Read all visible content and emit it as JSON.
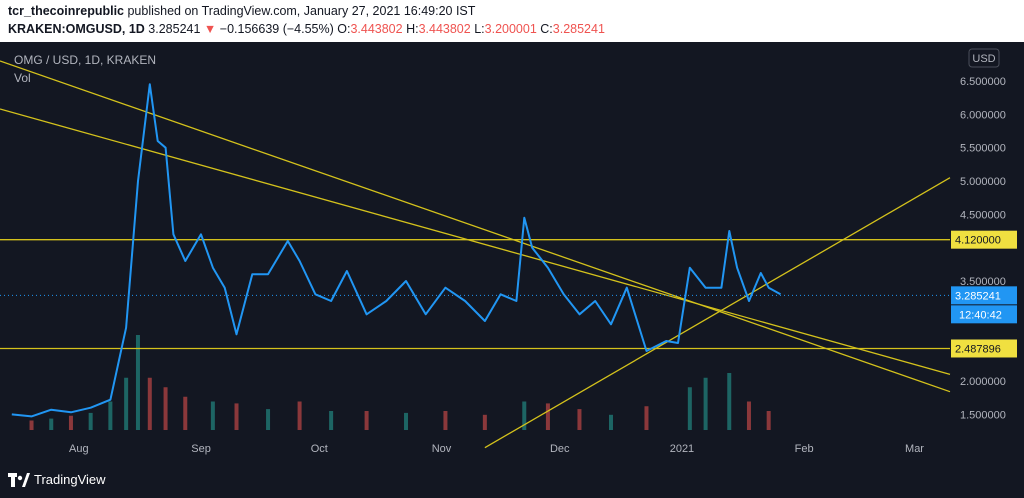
{
  "header": {
    "publisher": "tcr_thecoinrepublic",
    "published_text": "published on TradingView.com, January 27, 2021 16:49:20 IST",
    "symbol": "KRAKEN:OMGUSD, 1D",
    "last": "3.285241",
    "change_arrow": "▼",
    "change": "−0.156639 (−4.55%)",
    "o_label": "O:",
    "o_value": "3.443802",
    "h_label": "H:",
    "h_value": "3.443802",
    "l_label": "L:",
    "l_value": "3.200001",
    "c_label": "C:",
    "c_value": "3.285241"
  },
  "legend": {
    "title": "OMG / USD, 1D, KRAKEN",
    "volume": "Vol"
  },
  "footer": {
    "brand": "TradingView"
  },
  "colors": {
    "line": "#2196f3",
    "trend": "#d4c21c",
    "vol_up": "#26a69a",
    "vol_down": "#ef5350",
    "bg": "#131722"
  },
  "chart_data": {
    "type": "line",
    "currency_label": "USD",
    "x": [
      "2021-07-15",
      "2021-07-20",
      "2021-07-25",
      "2021-07-30",
      "2021-08-04",
      "2021-08-09",
      "2021-08-13",
      "2021-08-16",
      "2021-08-19",
      "2021-08-21",
      "2021-08-23",
      "2021-08-25",
      "2021-08-28",
      "2021-09-01",
      "2021-09-04",
      "2021-09-07",
      "2021-09-10",
      "2021-09-14",
      "2021-09-18",
      "2021-09-23",
      "2021-09-26",
      "2021-09-30",
      "2021-10-04",
      "2021-10-08",
      "2021-10-13",
      "2021-10-18",
      "2021-10-23",
      "2021-10-28",
      "2021-11-02",
      "2021-11-07",
      "2021-11-12",
      "2021-11-16",
      "2021-11-20",
      "2021-11-22",
      "2021-11-24",
      "2021-11-28",
      "2021-12-02",
      "2021-12-06",
      "2021-12-10",
      "2021-12-14",
      "2021-12-18",
      "2021-12-23",
      "2021-12-28",
      "2021-12-31",
      "2022-01-03",
      "2022-01-07",
      "2022-01-11",
      "2022-01-13",
      "2022-01-15",
      "2022-01-18",
      "2022-01-21",
      "2022-01-23",
      "2022-01-26"
    ],
    "y": [
      1.5,
      1.47,
      1.57,
      1.53,
      1.6,
      1.72,
      2.8,
      5.0,
      6.45,
      5.6,
      5.5,
      4.2,
      3.8,
      4.2,
      3.7,
      3.4,
      2.7,
      3.6,
      3.6,
      4.1,
      3.8,
      3.3,
      3.2,
      3.65,
      3.0,
      3.2,
      3.5,
      3.0,
      3.4,
      3.2,
      2.9,
      3.3,
      3.2,
      4.45,
      4.0,
      3.7,
      3.3,
      3.0,
      3.2,
      2.85,
      3.4,
      2.45,
      2.6,
      2.57,
      3.7,
      3.4,
      3.4,
      4.25,
      3.7,
      3.2,
      3.62,
      3.4,
      3.3
    ],
    "volume": [
      {
        "x": "2021-07-20",
        "v": 0.1,
        "up": false
      },
      {
        "x": "2021-07-25",
        "v": 0.12,
        "up": true
      },
      {
        "x": "2021-07-30",
        "v": 0.15,
        "up": false
      },
      {
        "x": "2021-08-04",
        "v": 0.18,
        "up": true
      },
      {
        "x": "2021-08-09",
        "v": 0.3,
        "up": true
      },
      {
        "x": "2021-08-13",
        "v": 0.55,
        "up": true
      },
      {
        "x": "2021-08-16",
        "v": 1.0,
        "up": true
      },
      {
        "x": "2021-08-19",
        "v": 0.55,
        "up": false
      },
      {
        "x": "2021-08-23",
        "v": 0.45,
        "up": false
      },
      {
        "x": "2021-08-28",
        "v": 0.35,
        "up": false
      },
      {
        "x": "2021-09-04",
        "v": 0.3,
        "up": true
      },
      {
        "x": "2021-09-10",
        "v": 0.28,
        "up": false
      },
      {
        "x": "2021-09-18",
        "v": 0.22,
        "up": true
      },
      {
        "x": "2021-09-26",
        "v": 0.3,
        "up": false
      },
      {
        "x": "2021-10-04",
        "v": 0.2,
        "up": true
      },
      {
        "x": "2021-10-13",
        "v": 0.2,
        "up": false
      },
      {
        "x": "2021-10-23",
        "v": 0.18,
        "up": true
      },
      {
        "x": "2021-11-02",
        "v": 0.2,
        "up": false
      },
      {
        "x": "2021-11-12",
        "v": 0.16,
        "up": false
      },
      {
        "x": "2021-11-22",
        "v": 0.3,
        "up": true
      },
      {
        "x": "2021-11-28",
        "v": 0.28,
        "up": false
      },
      {
        "x": "2021-12-06",
        "v": 0.22,
        "up": false
      },
      {
        "x": "2021-12-14",
        "v": 0.16,
        "up": true
      },
      {
        "x": "2021-12-23",
        "v": 0.25,
        "up": false
      },
      {
        "x": "2022-01-03",
        "v": 0.45,
        "up": true
      },
      {
        "x": "2022-01-07",
        "v": 0.55,
        "up": true
      },
      {
        "x": "2022-01-13",
        "v": 0.6,
        "up": true
      },
      {
        "x": "2022-01-18",
        "v": 0.3,
        "up": false
      },
      {
        "x": "2022-01-23",
        "v": 0.2,
        "up": false
      }
    ],
    "xticks": [
      {
        "label": "Aug",
        "x": "2021-08-01"
      },
      {
        "label": "Sep",
        "x": "2021-09-01"
      },
      {
        "label": "Oct",
        "x": "2021-10-01"
      },
      {
        "label": "Nov",
        "x": "2021-11-01"
      },
      {
        "label": "Dec",
        "x": "2021-12-01"
      },
      {
        "label": "2021",
        "x": "2022-01-01"
      },
      {
        "label": "Feb",
        "x": "2022-02-01"
      },
      {
        "label": "Mar",
        "x": "2022-03-01"
      }
    ],
    "yticks": [
      "1.500000",
      "2.000000",
      "3.500000",
      "4.500000",
      "5.000000",
      "5.500000",
      "6.000000",
      "6.500000"
    ],
    "levels": [
      {
        "value": 4.12,
        "label": "4.120000"
      },
      {
        "value": 2.487896,
        "label": "2.487896"
      }
    ],
    "last_price": {
      "value": 3.285241,
      "label": "3.285241",
      "countdown": "12:40:42"
    },
    "trendlines": [
      {
        "from": [
          "2021-07-12",
          6.8
        ],
        "to": [
          "2022-03-10",
          1.84
        ]
      },
      {
        "from": [
          "2021-07-12",
          6.08
        ],
        "to": [
          "2022-03-10",
          2.1
        ]
      },
      {
        "from": [
          "2021-11-12",
          1.0
        ],
        "to": [
          "2022-03-10",
          5.05
        ]
      }
    ],
    "ylim": [
      1.0,
      6.8
    ]
  }
}
